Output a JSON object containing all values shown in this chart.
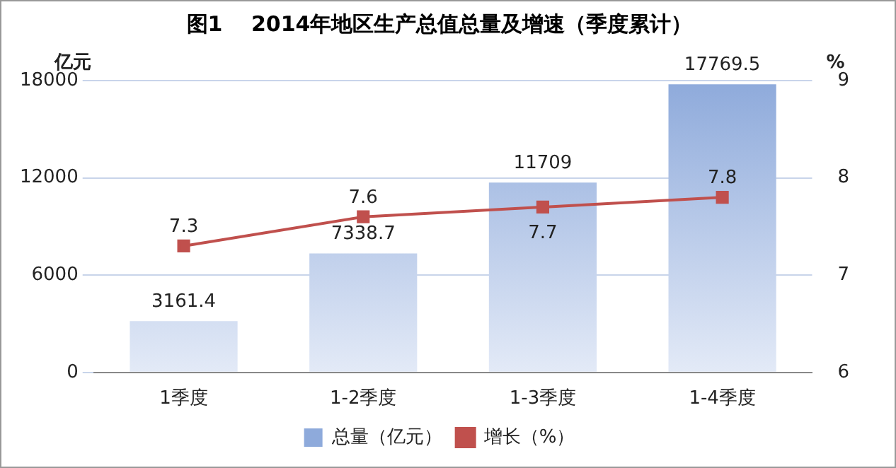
{
  "chart_data": {
    "type": "bar",
    "title": "图1　 2014年地区生产总值总量及增速（季度累计）",
    "ylabel": "亿元",
    "y2label": "%",
    "categories": [
      "1季度",
      "1-2季度",
      "1-3季度",
      "1-4季度"
    ],
    "series": [
      {
        "name": "总量（亿元）",
        "color": "#8eaadb",
        "values": [
          3161.4,
          7338.7,
          11709,
          17769.5
        ]
      },
      {
        "name": "增长（%）",
        "type": "line",
        "axis": "y2",
        "color": "#c0504d",
        "values": [
          7.3,
          7.6,
          7.7,
          7.8
        ]
      }
    ],
    "ylim": [
      0,
      18000
    ],
    "yticks": [
      0,
      6000,
      12000,
      18000
    ],
    "y2lim": [
      6,
      9
    ],
    "y2ticks": [
      6,
      7,
      8,
      9
    ],
    "grid": "y",
    "legend": "bottom",
    "marker": "square",
    "data_labels": true
  }
}
